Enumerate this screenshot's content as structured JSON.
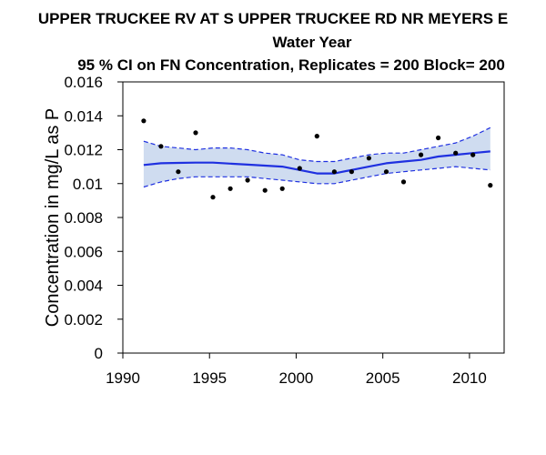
{
  "chart_data": {
    "type": "line",
    "title_lines": [
      "UPPER TRUCKEE RV AT S UPPER TRUCKEE RD NR MEYERS   E",
      "Water Year",
      "95 % CI on FN Concentration, Replicates = 200 Block= 200"
    ],
    "xlabel": "",
    "ylabel": "Concentration in mg/L as P",
    "xlim": [
      1990,
      2012
    ],
    "ylim": [
      0,
      0.016
    ],
    "x_ticks": [
      1990,
      1995,
      2000,
      2005,
      2010
    ],
    "x_tick_labels": [
      "1990",
      "1995",
      "2000",
      "2005",
      "2010"
    ],
    "y_ticks": [
      0,
      0.002,
      0.004,
      0.006,
      0.008,
      0.01,
      0.012,
      0.014,
      0.016
    ],
    "y_tick_labels": [
      "0",
      "0.002",
      "0.004",
      "0.006",
      "0.008",
      "0.01",
      "0.012",
      "0.014",
      "0.016"
    ],
    "grid": false,
    "colors": {
      "trend": "#1f30e0",
      "band": "#cfdcf0",
      "points": "#000000"
    },
    "series": [
      {
        "kind": "points",
        "x": [
          1991.2,
          1992.2,
          1993.2,
          1994.2,
          1995.2,
          1996.2,
          1997.2,
          1998.2,
          1999.2,
          2000.2,
          2001.2,
          2002.2,
          2003.2,
          2004.2,
          2005.2,
          2006.2,
          2007.2,
          2008.2,
          2009.2,
          2010.2,
          2011.2
        ],
        "y": [
          0.0137,
          0.0122,
          0.0107,
          0.013,
          0.0092,
          0.0097,
          0.0102,
          0.0096,
          0.0097,
          0.0109,
          0.0128,
          0.0107,
          0.0107,
          0.0115,
          0.0107,
          0.0101,
          0.0117,
          0.0127,
          0.0118,
          0.0117,
          0.0099
        ]
      },
      {
        "kind": "trend",
        "x": [
          1991.2,
          1992.2,
          1993.2,
          1994.2,
          1995.2,
          1996.2,
          1997.2,
          1998.2,
          1999.2,
          2000.2,
          2001.2,
          2002.2,
          2003.2,
          2004.2,
          2005.2,
          2006.2,
          2007.2,
          2008.2,
          2009.2,
          2010.2,
          2011.2
        ],
        "y": [
          0.0111,
          0.0112,
          0.01122,
          0.01124,
          0.01124,
          0.01118,
          0.01112,
          0.01106,
          0.011,
          0.0108,
          0.0106,
          0.0106,
          0.0108,
          0.011,
          0.0112,
          0.0113,
          0.0114,
          0.0116,
          0.0117,
          0.0118,
          0.0119
        ]
      },
      {
        "kind": "ci_upper",
        "x": [
          1991.2,
          1992.2,
          1993.2,
          1994.2,
          1995.2,
          1996.2,
          1997.2,
          1998.2,
          1999.2,
          2000.2,
          2001.2,
          2002.2,
          2003.2,
          2004.2,
          2005.2,
          2006.2,
          2007.2,
          2008.2,
          2009.2,
          2010.2,
          2011.2
        ],
        "y": [
          0.0125,
          0.0122,
          0.0121,
          0.012,
          0.0121,
          0.0121,
          0.012,
          0.0118,
          0.0117,
          0.0114,
          0.0113,
          0.0113,
          0.0115,
          0.0117,
          0.0118,
          0.0118,
          0.012,
          0.0122,
          0.0124,
          0.0128,
          0.0133
        ]
      },
      {
        "kind": "ci_lower",
        "x": [
          1991.2,
          1992.2,
          1993.2,
          1994.2,
          1995.2,
          1996.2,
          1997.2,
          1998.2,
          1999.2,
          2000.2,
          2001.2,
          2002.2,
          2003.2,
          2004.2,
          2005.2,
          2006.2,
          2007.2,
          2008.2,
          2009.2,
          2010.2,
          2011.2
        ],
        "y": [
          0.0098,
          0.0101,
          0.0103,
          0.0104,
          0.0104,
          0.0104,
          0.0104,
          0.0103,
          0.0102,
          0.0101,
          0.01,
          0.01,
          0.0102,
          0.0104,
          0.0106,
          0.0107,
          0.0108,
          0.0109,
          0.011,
          0.0109,
          0.0108
        ]
      }
    ]
  }
}
